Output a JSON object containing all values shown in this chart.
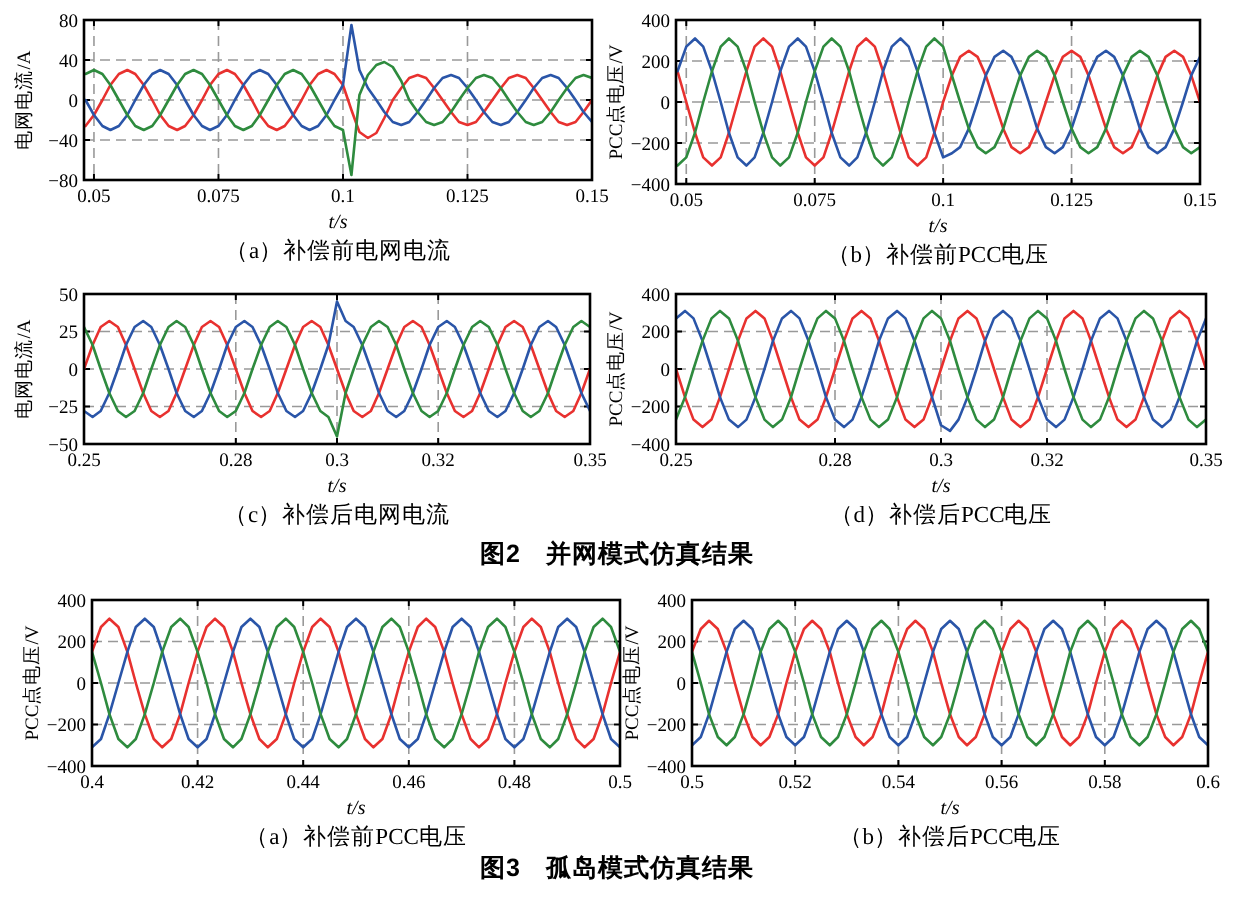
{
  "chart_data": [
    {
      "type": "line",
      "title": "（a）补偿前电网电流",
      "xlabel": "t/s",
      "ylabel": "电网电流/A",
      "xlim": [
        0.048,
        0.15
      ],
      "ylim": [
        -80,
        80
      ],
      "xticks": [
        0.05,
        0.075,
        0.1,
        0.125,
        0.15
      ],
      "yticks": [
        -80,
        -40,
        0,
        40,
        80
      ],
      "grid": true,
      "x": [
        0.0483,
        0.05,
        0.0517,
        0.0533,
        0.055,
        0.0567,
        0.0583,
        0.06,
        0.0617,
        0.0633,
        0.065,
        0.0667,
        0.0683,
        0.07,
        0.0717,
        0.0733,
        0.075,
        0.0767,
        0.0783,
        0.08,
        0.0817,
        0.0833,
        0.085,
        0.0867,
        0.0883,
        0.09,
        0.0917,
        0.0933,
        0.095,
        0.0967,
        0.0983,
        0.1,
        0.1017,
        0.1033,
        0.105,
        0.1067,
        0.1083,
        0.11,
        0.1117,
        0.1133,
        0.115,
        0.1167,
        0.1183,
        0.12,
        0.1217,
        0.1233,
        0.125,
        0.1267,
        0.1283,
        0.13,
        0.1317,
        0.1333,
        0.135,
        0.1367,
        0.1383,
        0.14,
        0.1417,
        0.1433,
        0.145,
        0.1467,
        0.1483,
        0.15
      ],
      "series": [
        {
          "color": "#e8312f",
          "values": [
            -26,
            -15,
            0,
            15,
            26,
            30,
            26,
            15,
            0,
            -15,
            -26,
            -30,
            -26,
            -15,
            0,
            15,
            26,
            30,
            26,
            15,
            0,
            -15,
            -26,
            -30,
            -26,
            -15,
            0,
            15,
            26,
            30,
            26,
            15,
            -10,
            -32,
            -38,
            -33,
            -18,
            0,
            12,
            22,
            25,
            22,
            12,
            0,
            -12,
            -22,
            -25,
            -22,
            -12,
            0,
            12,
            22,
            25,
            22,
            12,
            0,
            -12,
            -22,
            -25,
            -22,
            -12,
            0
          ]
        },
        {
          "color": "#2a55a8",
          "values": [
            0,
            -15,
            -26,
            -30,
            -26,
            -15,
            0,
            15,
            26,
            30,
            26,
            15,
            0,
            -15,
            -26,
            -30,
            -26,
            -15,
            0,
            15,
            26,
            30,
            26,
            15,
            0,
            -15,
            -26,
            -30,
            -26,
            -15,
            0,
            15,
            75,
            30,
            12,
            0,
            -12,
            -22,
            -25,
            -22,
            -12,
            0,
            12,
            22,
            25,
            22,
            12,
            0,
            -12,
            -22,
            -25,
            -22,
            -12,
            0,
            12,
            22,
            25,
            22,
            12,
            0,
            -12,
            -22
          ]
        },
        {
          "color": "#2e8b3e",
          "values": [
            26,
            30,
            26,
            15,
            0,
            -15,
            -26,
            -30,
            -26,
            -15,
            0,
            15,
            26,
            30,
            26,
            15,
            0,
            -15,
            -26,
            -30,
            -26,
            -15,
            0,
            15,
            26,
            30,
            26,
            15,
            0,
            -15,
            -26,
            -30,
            -75,
            5,
            25,
            35,
            38,
            33,
            19,
            0,
            -12,
            -22,
            -25,
            -22,
            -12,
            0,
            12,
            22,
            25,
            22,
            12,
            0,
            -12,
            -22,
            -25,
            -22,
            -12,
            0,
            12,
            22,
            25,
            22
          ]
        }
      ]
    },
    {
      "type": "line",
      "title": "（b）补偿前PCC电压",
      "xlabel": "t/s",
      "ylabel": "PCC点电压/V",
      "xlim": [
        0.048,
        0.15
      ],
      "ylim": [
        -400,
        400
      ],
      "xticks": [
        0.05,
        0.075,
        0.1,
        0.125,
        0.15
      ],
      "yticks": [
        -400,
        -200,
        0,
        200,
        400
      ],
      "grid": true,
      "x": [
        0.0483,
        0.05,
        0.0517,
        0.0533,
        0.055,
        0.0567,
        0.0583,
        0.06,
        0.0617,
        0.0633,
        0.065,
        0.0667,
        0.0683,
        0.07,
        0.0717,
        0.0733,
        0.075,
        0.0767,
        0.0783,
        0.08,
        0.0817,
        0.0833,
        0.085,
        0.0867,
        0.0883,
        0.09,
        0.0917,
        0.0933,
        0.095,
        0.0967,
        0.0983,
        0.1,
        0.1017,
        0.1033,
        0.105,
        0.1067,
        0.1083,
        0.11,
        0.1117,
        0.1133,
        0.115,
        0.1167,
        0.1183,
        0.12,
        0.1217,
        0.1233,
        0.125,
        0.1267,
        0.1283,
        0.13,
        0.1317,
        0.1333,
        0.135,
        0.1367,
        0.1383,
        0.14,
        0.1417,
        0.1433,
        0.145,
        0.1467,
        0.1483,
        0.15
      ],
      "series": [
        {
          "color": "#e8312f",
          "values": [
            150,
            0,
            -150,
            -270,
            -310,
            -270,
            -150,
            0,
            150,
            270,
            310,
            270,
            150,
            0,
            -150,
            -270,
            -310,
            -270,
            -150,
            0,
            150,
            270,
            310,
            270,
            150,
            0,
            -150,
            -270,
            -310,
            -270,
            -150,
            0,
            130,
            220,
            250,
            220,
            130,
            0,
            -130,
            -220,
            -250,
            -220,
            -130,
            0,
            130,
            220,
            250,
            220,
            130,
            0,
            -130,
            -220,
            -250,
            -220,
            -130,
            0,
            130,
            220,
            250,
            220,
            130,
            0
          ]
        },
        {
          "color": "#2a55a8",
          "values": [
            150,
            270,
            310,
            270,
            150,
            0,
            -150,
            -270,
            -310,
            -270,
            -150,
            0,
            150,
            270,
            310,
            270,
            150,
            0,
            -150,
            -270,
            -310,
            -270,
            -150,
            0,
            150,
            270,
            310,
            270,
            150,
            0,
            -150,
            -270,
            -250,
            -220,
            -130,
            0,
            130,
            220,
            250,
            220,
            130,
            0,
            -130,
            -220,
            -250,
            -220,
            -130,
            0,
            130,
            220,
            250,
            220,
            130,
            0,
            -130,
            -220,
            -250,
            -220,
            -130,
            0,
            130,
            220
          ]
        },
        {
          "color": "#2e8b3e",
          "values": [
            -310,
            -270,
            -150,
            0,
            150,
            270,
            310,
            270,
            150,
            0,
            -150,
            -270,
            -310,
            -270,
            -150,
            0,
            150,
            270,
            310,
            270,
            150,
            0,
            -150,
            -270,
            -310,
            -270,
            -150,
            0,
            150,
            270,
            310,
            270,
            130,
            0,
            -130,
            -220,
            -250,
            -220,
            -130,
            0,
            130,
            220,
            250,
            220,
            130,
            0,
            -130,
            -220,
            -250,
            -220,
            -130,
            0,
            130,
            220,
            250,
            220,
            130,
            0,
            -130,
            -220,
            -250,
            -220
          ]
        }
      ]
    },
    {
      "type": "line",
      "title": "（c）补偿后电网电流",
      "xlabel": "t/s",
      "ylabel": "电网电流/A",
      "xlim": [
        0.25,
        0.35
      ],
      "ylim": [
        -50,
        50
      ],
      "xticks": [
        0.25,
        0.28,
        0.3,
        0.32,
        0.35
      ],
      "yticks": [
        -50,
        -25,
        0,
        25,
        50
      ],
      "grid": true,
      "annotations": [
        "图2　并网模式仿真结果"
      ],
      "x": [
        0.25,
        0.2517,
        0.2533,
        0.255,
        0.2567,
        0.2583,
        0.26,
        0.2617,
        0.2633,
        0.265,
        0.2667,
        0.2683,
        0.27,
        0.2717,
        0.2733,
        0.275,
        0.2767,
        0.2783,
        0.28,
        0.2817,
        0.2833,
        0.285,
        0.2867,
        0.2883,
        0.29,
        0.2917,
        0.2933,
        0.295,
        0.2967,
        0.2983,
        0.3,
        0.3017,
        0.3033,
        0.305,
        0.3067,
        0.3083,
        0.31,
        0.3117,
        0.3133,
        0.315,
        0.3167,
        0.3183,
        0.32,
        0.3217,
        0.3233,
        0.325,
        0.3267,
        0.3283,
        0.33,
        0.3317,
        0.3333,
        0.335,
        0.3367,
        0.3383,
        0.34,
        0.3417,
        0.3433,
        0.345,
        0.3467,
        0.3483,
        0.35
      ],
      "series": [
        {
          "color": "#e8312f",
          "values": [
            0,
            16,
            28,
            32,
            28,
            16,
            0,
            -16,
            -28,
            -32,
            -28,
            -16,
            0,
            16,
            28,
            32,
            28,
            16,
            0,
            -16,
            -28,
            -32,
            -28,
            -16,
            0,
            16,
            28,
            32,
            28,
            16,
            0,
            -16,
            -28,
            -32,
            -28,
            -16,
            0,
            16,
            28,
            32,
            28,
            16,
            0,
            -16,
            -28,
            -32,
            -28,
            -16,
            0,
            16,
            28,
            32,
            28,
            16,
            0,
            -16,
            -28,
            -32,
            -28,
            -16,
            0
          ]
        },
        {
          "color": "#2a55a8",
          "values": [
            -28,
            -32,
            -28,
            -16,
            0,
            16,
            28,
            32,
            28,
            16,
            0,
            -16,
            -28,
            -32,
            -28,
            -16,
            0,
            16,
            28,
            32,
            28,
            16,
            0,
            -16,
            -28,
            -32,
            -28,
            -16,
            0,
            16,
            45,
            32,
            28,
            16,
            0,
            -16,
            -28,
            -32,
            -28,
            -16,
            0,
            16,
            28,
            32,
            28,
            16,
            0,
            -16,
            -28,
            -32,
            -28,
            -16,
            0,
            16,
            28,
            32,
            28,
            16,
            0,
            -16,
            -28
          ]
        },
        {
          "color": "#2e8b3e",
          "values": [
            28,
            16,
            0,
            -16,
            -28,
            -32,
            -28,
            -16,
            0,
            16,
            28,
            32,
            28,
            16,
            0,
            -16,
            -28,
            -32,
            -28,
            -16,
            0,
            16,
            28,
            32,
            28,
            16,
            0,
            -16,
            -28,
            -32,
            -45,
            -16,
            0,
            16,
            28,
            32,
            28,
            16,
            0,
            -16,
            -28,
            -32,
            -28,
            -16,
            0,
            16,
            28,
            32,
            28,
            16,
            0,
            -16,
            -28,
            -32,
            -28,
            -16,
            0,
            16,
            28,
            32,
            28
          ]
        }
      ]
    },
    {
      "type": "line",
      "title": "（d）补偿后PCC电压",
      "xlabel": "t/s",
      "ylabel": "PCC点电压/V",
      "xlim": [
        0.25,
        0.35
      ],
      "ylim": [
        -400,
        400
      ],
      "xticks": [
        0.25,
        0.28,
        0.3,
        0.32,
        0.35
      ],
      "yticks": [
        -400,
        -200,
        0,
        200,
        400
      ],
      "grid": true,
      "x": [
        0.25,
        0.2517,
        0.2533,
        0.255,
        0.2567,
        0.2583,
        0.26,
        0.2617,
        0.2633,
        0.265,
        0.2667,
        0.2683,
        0.27,
        0.2717,
        0.2733,
        0.275,
        0.2767,
        0.2783,
        0.28,
        0.2817,
        0.2833,
        0.285,
        0.2867,
        0.2883,
        0.29,
        0.2917,
        0.2933,
        0.295,
        0.2967,
        0.2983,
        0.3,
        0.3017,
        0.3033,
        0.305,
        0.3067,
        0.3083,
        0.31,
        0.3117,
        0.3133,
        0.315,
        0.3167,
        0.3183,
        0.32,
        0.3217,
        0.3233,
        0.325,
        0.3267,
        0.3283,
        0.33,
        0.3317,
        0.3333,
        0.335,
        0.3367,
        0.3383,
        0.34,
        0.3417,
        0.3433,
        0.345,
        0.3467,
        0.3483,
        0.35
      ],
      "series": [
        {
          "color": "#e8312f",
          "values": [
            0,
            -150,
            -270,
            -310,
            -270,
            -150,
            0,
            150,
            270,
            310,
            270,
            150,
            0,
            -150,
            -270,
            -310,
            -270,
            -150,
            0,
            150,
            270,
            310,
            270,
            150,
            0,
            -150,
            -270,
            -310,
            -270,
            -150,
            0,
            150,
            270,
            310,
            270,
            150,
            0,
            -150,
            -270,
            -310,
            -270,
            -150,
            0,
            150,
            270,
            310,
            270,
            150,
            0,
            -150,
            -270,
            -310,
            -270,
            -150,
            0,
            150,
            270,
            310,
            270,
            150,
            0
          ]
        },
        {
          "color": "#2a55a8",
          "values": [
            270,
            310,
            270,
            150,
            0,
            -150,
            -270,
            -310,
            -270,
            -150,
            0,
            150,
            270,
            310,
            270,
            150,
            0,
            -150,
            -270,
            -310,
            -270,
            -150,
            0,
            150,
            270,
            310,
            270,
            150,
            0,
            -150,
            -300,
            -330,
            -270,
            -150,
            0,
            150,
            270,
            310,
            270,
            150,
            0,
            -150,
            -270,
            -310,
            -270,
            -150,
            0,
            150,
            270,
            310,
            270,
            150,
            0,
            -150,
            -270,
            -310,
            -270,
            -150,
            0,
            150,
            270
          ]
        },
        {
          "color": "#2e8b3e",
          "values": [
            -270,
            -150,
            0,
            150,
            270,
            310,
            270,
            150,
            0,
            -150,
            -270,
            -310,
            -270,
            -150,
            0,
            150,
            270,
            310,
            270,
            150,
            0,
            -150,
            -270,
            -310,
            -270,
            -150,
            0,
            150,
            270,
            310,
            270,
            150,
            0,
            -150,
            -270,
            -310,
            -270,
            -150,
            0,
            150,
            270,
            310,
            270,
            150,
            0,
            -150,
            -270,
            -310,
            -270,
            -150,
            0,
            150,
            270,
            310,
            270,
            150,
            0,
            -150,
            -270,
            -310,
            -270
          ]
        }
      ]
    },
    {
      "type": "line",
      "title": "（a）补偿前PCC电压",
      "xlabel": "t/s",
      "ylabel": "PCC点电压/V",
      "xlim": [
        0.4,
        0.5
      ],
      "ylim": [
        -400,
        400
      ],
      "xticks": [
        0.4,
        0.42,
        0.44,
        0.46,
        0.48,
        0.5
      ],
      "yticks": [
        -400,
        -200,
        0,
        200,
        400
      ],
      "grid": true,
      "annotations": [
        "图3　孤岛模式仿真结果"
      ],
      "x": [
        0.4,
        0.4017,
        0.4033,
        0.405,
        0.4067,
        0.4083,
        0.41,
        0.4117,
        0.4133,
        0.415,
        0.4167,
        0.4183,
        0.42,
        0.4217,
        0.4233,
        0.425,
        0.4267,
        0.4283,
        0.43,
        0.4317,
        0.4333,
        0.435,
        0.4367,
        0.4383,
        0.44,
        0.4417,
        0.4433,
        0.445,
        0.4467,
        0.4483,
        0.45,
        0.4517,
        0.4533,
        0.455,
        0.4567,
        0.4583,
        0.46,
        0.4617,
        0.4633,
        0.465,
        0.4667,
        0.4683,
        0.47,
        0.4717,
        0.4733,
        0.475,
        0.4767,
        0.4783,
        0.48,
        0.4817,
        0.4833,
        0.485,
        0.4867,
        0.4883,
        0.49,
        0.4917,
        0.4933,
        0.495,
        0.4967,
        0.4983,
        0.5
      ],
      "series": [
        {
          "color": "#e8312f",
          "values": [
            150,
            270,
            310,
            270,
            150,
            0,
            -150,
            -270,
            -310,
            -270,
            -150,
            0,
            150,
            270,
            310,
            270,
            150,
            0,
            -150,
            -270,
            -310,
            -270,
            -150,
            0,
            150,
            270,
            310,
            270,
            150,
            0,
            -150,
            -270,
            -310,
            -270,
            -150,
            0,
            150,
            270,
            310,
            270,
            150,
            0,
            -150,
            -270,
            -310,
            -270,
            -150,
            0,
            150,
            270,
            310,
            270,
            150,
            0,
            -150,
            -270,
            -310,
            -270,
            -150,
            0,
            150
          ]
        },
        {
          "color": "#2a55a8",
          "values": [
            -310,
            -270,
            -150,
            0,
            150,
            270,
            310,
            270,
            150,
            0,
            -150,
            -270,
            -310,
            -270,
            -150,
            0,
            150,
            270,
            310,
            270,
            150,
            0,
            -150,
            -270,
            -310,
            -270,
            -150,
            0,
            150,
            270,
            310,
            270,
            150,
            0,
            -150,
            -270,
            -310,
            -270,
            -150,
            0,
            150,
            270,
            310,
            270,
            150,
            0,
            -150,
            -270,
            -310,
            -270,
            -150,
            0,
            150,
            270,
            310,
            270,
            150,
            0,
            -150,
            -270,
            -310
          ]
        },
        {
          "color": "#2e8b3e",
          "values": [
            150,
            0,
            -150,
            -270,
            -310,
            -270,
            -150,
            0,
            150,
            270,
            310,
            270,
            150,
            0,
            -150,
            -270,
            -310,
            -270,
            -150,
            0,
            150,
            270,
            310,
            270,
            150,
            0,
            -150,
            -270,
            -310,
            -270,
            -150,
            0,
            150,
            270,
            310,
            270,
            150,
            0,
            -150,
            -270,
            -310,
            -270,
            -150,
            0,
            150,
            270,
            310,
            270,
            150,
            0,
            -150,
            -270,
            -310,
            -270,
            -150,
            0,
            150,
            270,
            310,
            270,
            150
          ]
        }
      ]
    },
    {
      "type": "line",
      "title": "（b）补偿后PCC电压",
      "xlabel": "t/s",
      "ylabel": "PCC点电压/V",
      "xlim": [
        0.5,
        0.6
      ],
      "ylim": [
        -400,
        400
      ],
      "xticks": [
        0.5,
        0.52,
        0.54,
        0.56,
        0.58,
        0.6
      ],
      "yticks": [
        -400,
        -200,
        0,
        200,
        400
      ],
      "grid": true,
      "x": [
        0.5,
        0.5017,
        0.5033,
        0.505,
        0.5067,
        0.5083,
        0.51,
        0.5117,
        0.5133,
        0.515,
        0.5167,
        0.5183,
        0.52,
        0.5217,
        0.5233,
        0.525,
        0.5267,
        0.5283,
        0.53,
        0.5317,
        0.5333,
        0.535,
        0.5367,
        0.5383,
        0.54,
        0.5417,
        0.5433,
        0.545,
        0.5467,
        0.5483,
        0.55,
        0.5517,
        0.5533,
        0.555,
        0.5567,
        0.5583,
        0.56,
        0.5617,
        0.5633,
        0.565,
        0.5667,
        0.5683,
        0.57,
        0.5717,
        0.5733,
        0.575,
        0.5767,
        0.5783,
        0.58,
        0.5817,
        0.5833,
        0.585,
        0.5867,
        0.5883,
        0.59,
        0.5917,
        0.5933,
        0.595,
        0.5967,
        0.5983,
        0.6
      ],
      "series": [
        {
          "color": "#e8312f",
          "values": [
            150,
            260,
            300,
            260,
            150,
            0,
            -150,
            -260,
            -300,
            -260,
            -150,
            0,
            150,
            260,
            300,
            260,
            150,
            0,
            -150,
            -260,
            -300,
            -260,
            -150,
            0,
            150,
            260,
            300,
            260,
            150,
            0,
            -150,
            -260,
            -300,
            -260,
            -150,
            0,
            150,
            260,
            300,
            260,
            150,
            0,
            -150,
            -260,
            -300,
            -260,
            -150,
            0,
            150,
            260,
            300,
            260,
            150,
            0,
            -150,
            -260,
            -300,
            -260,
            -150,
            0,
            150
          ]
        },
        {
          "color": "#2a55a8",
          "values": [
            -300,
            -260,
            -150,
            0,
            150,
            260,
            300,
            260,
            150,
            0,
            -150,
            -260,
            -300,
            -260,
            -150,
            0,
            150,
            260,
            300,
            260,
            150,
            0,
            -150,
            -260,
            -300,
            -260,
            -150,
            0,
            150,
            260,
            300,
            260,
            150,
            0,
            -150,
            -260,
            -300,
            -260,
            -150,
            0,
            150,
            260,
            300,
            260,
            150,
            0,
            -150,
            -260,
            -300,
            -260,
            -150,
            0,
            150,
            260,
            300,
            260,
            150,
            0,
            -150,
            -260,
            -300
          ]
        },
        {
          "color": "#2e8b3e",
          "values": [
            150,
            0,
            -150,
            -260,
            -300,
            -260,
            -150,
            0,
            150,
            260,
            300,
            260,
            150,
            0,
            -150,
            -260,
            -300,
            -260,
            -150,
            0,
            150,
            260,
            300,
            260,
            150,
            0,
            -150,
            -260,
            -300,
            -260,
            -150,
            0,
            150,
            260,
            300,
            260,
            150,
            0,
            -150,
            -260,
            -300,
            -260,
            -150,
            0,
            150,
            260,
            300,
            260,
            150,
            0,
            -150,
            -260,
            -300,
            -260,
            -150,
            0,
            150,
            260,
            300,
            260,
            150
          ]
        }
      ]
    }
  ]
}
